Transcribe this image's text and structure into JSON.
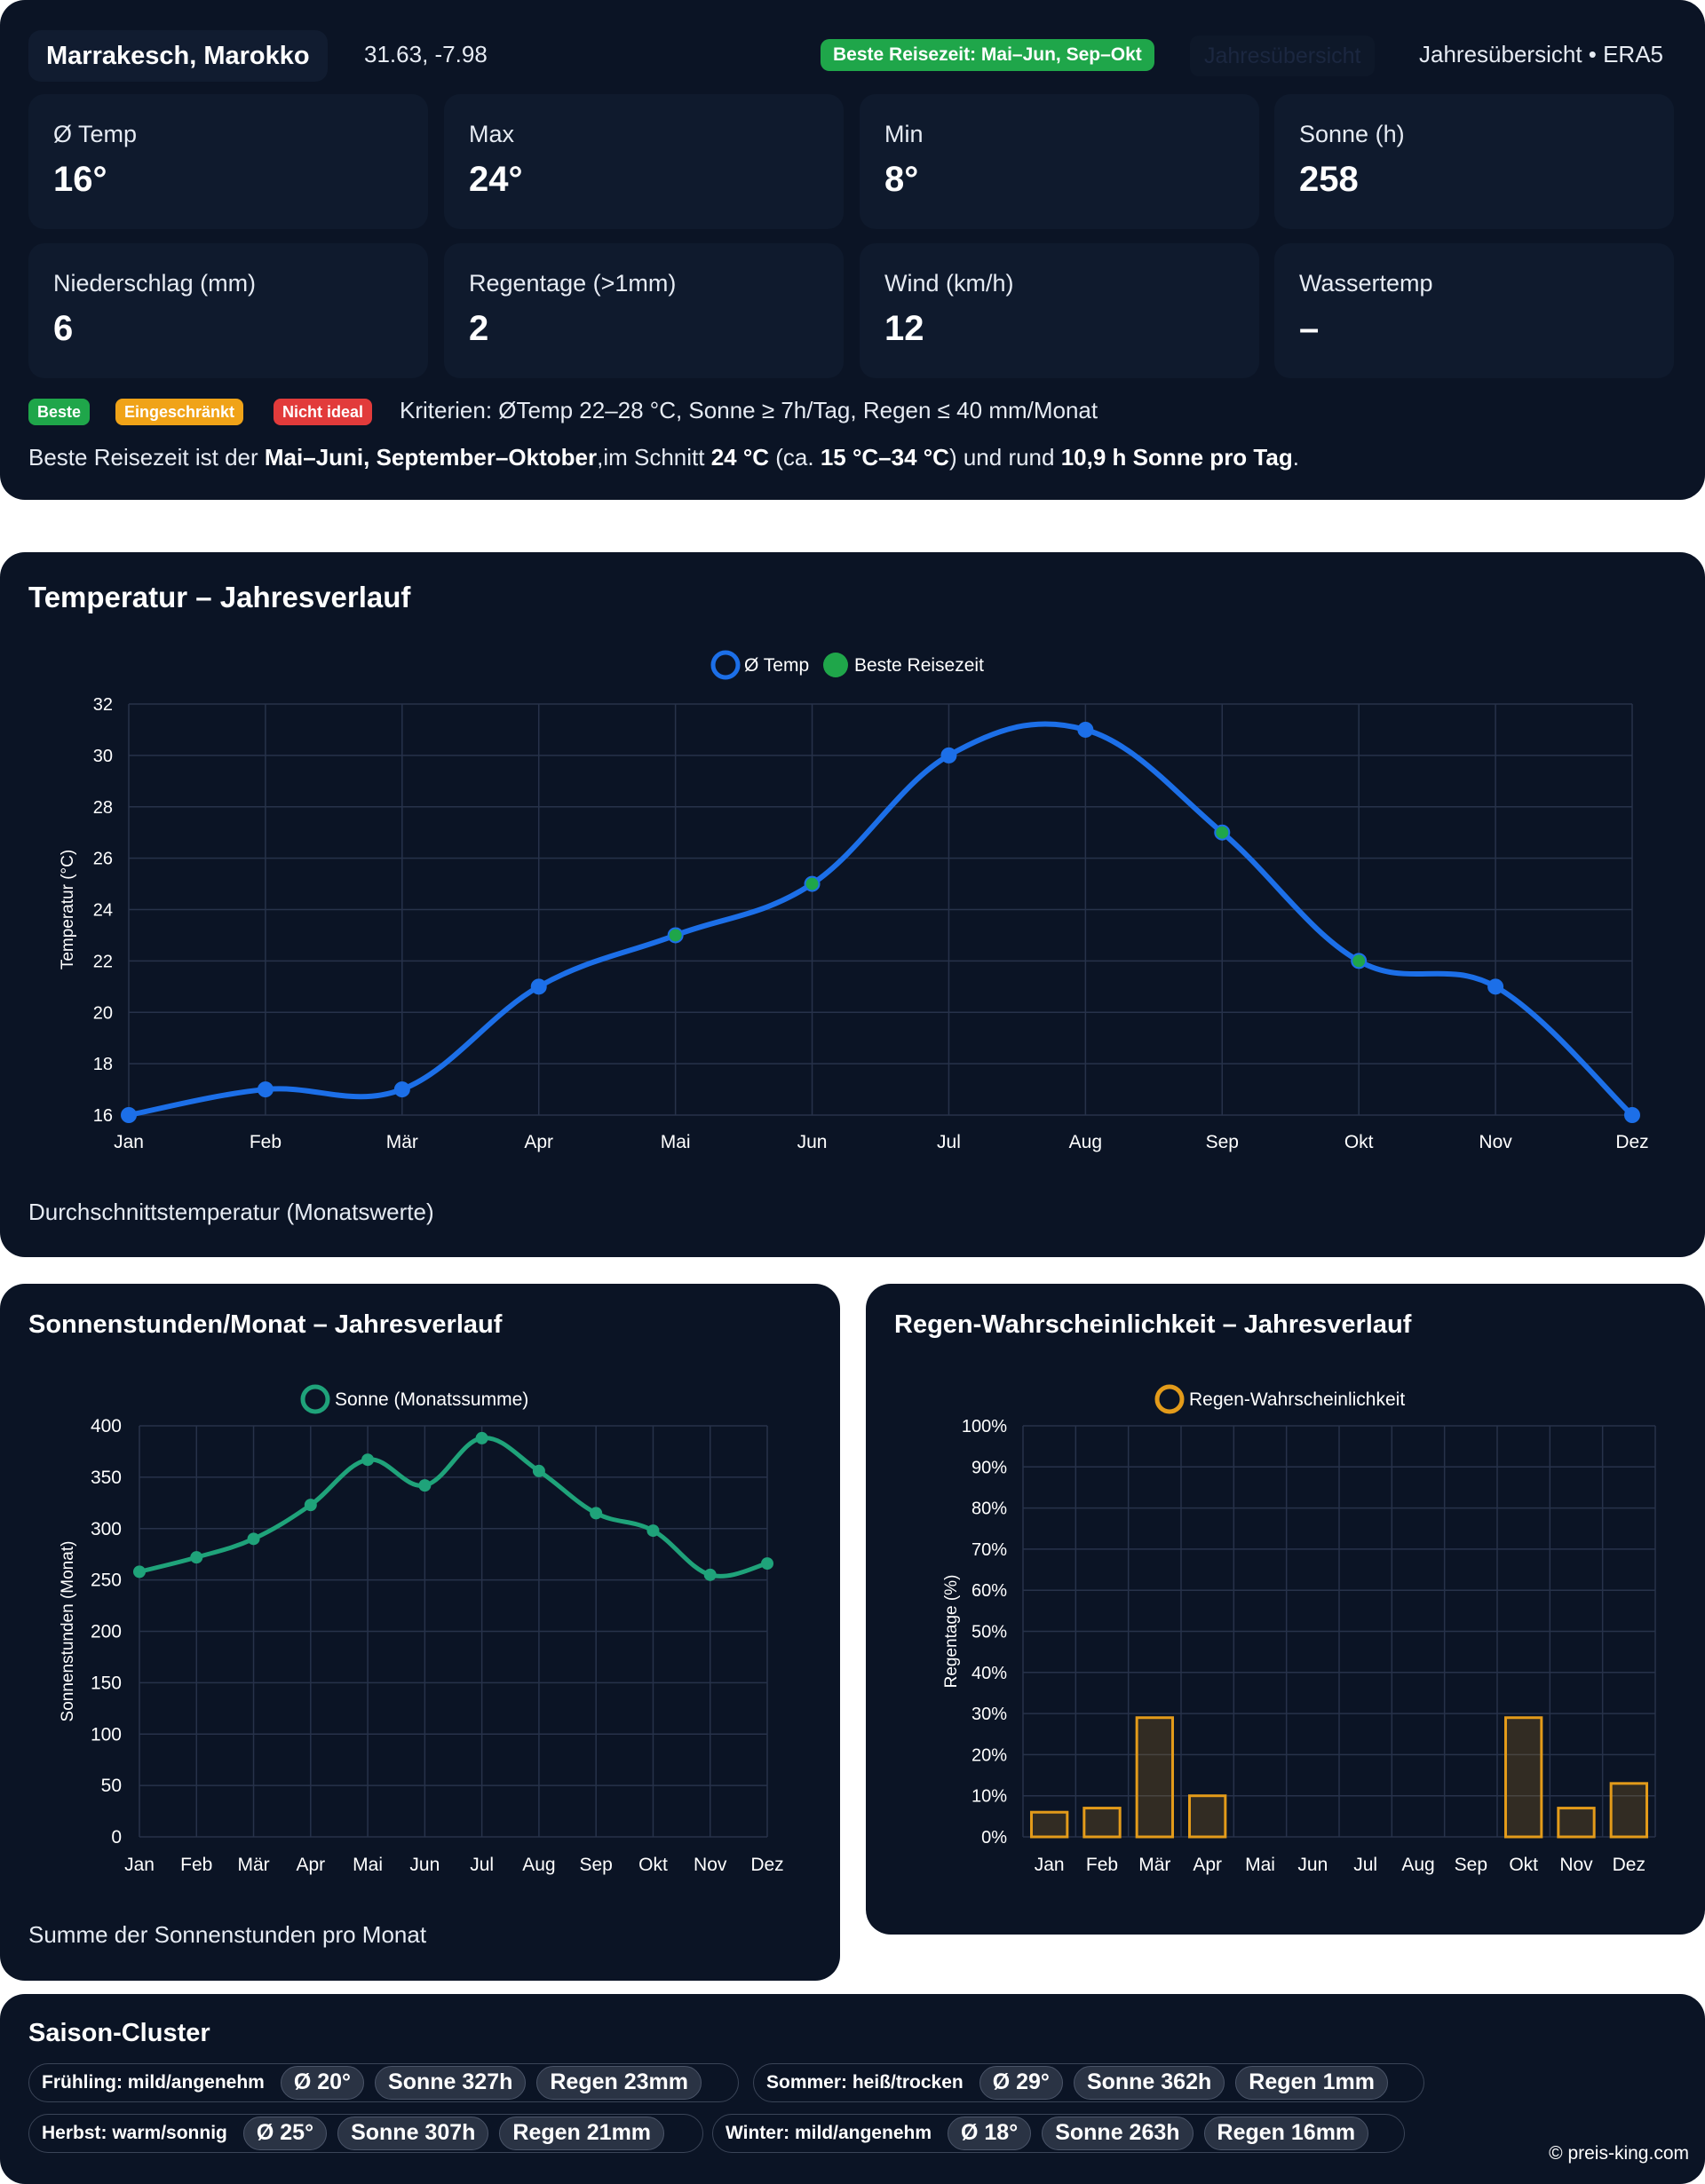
{
  "header": {
    "location": "Marrakesch, Marokko",
    "coords": "31.63, -7.98",
    "best_badge": "Beste Reisezeit: Mai–Jun, Sep–Okt",
    "ghost_tab": "Jahresübersicht",
    "period": "Jahresübersicht • ERA5"
  },
  "stats": [
    {
      "label": "Ø Temp",
      "value": "16°"
    },
    {
      "label": "Max",
      "value": "24°"
    },
    {
      "label": "Min",
      "value": "8°"
    },
    {
      "label": "Sonne (h)",
      "value": "258"
    },
    {
      "label": "Niederschlag (mm)",
      "value": "6"
    },
    {
      "label": "Regentage (>1mm)",
      "value": "2"
    },
    {
      "label": "Wind (km/h)",
      "value": "12"
    },
    {
      "label": "Wassertemp",
      "value": "–"
    }
  ],
  "legend": {
    "best": "Beste",
    "limited": "Eingeschränkt",
    "not_ideal": "Nicht ideal",
    "criteria": "Kriterien: ØTemp 22–28 °C, Sonne ≥ 7h/Tag, Regen ≤ 40 mm/Monat",
    "colors": {
      "best": "#1fa64a",
      "limited": "#f0a318",
      "not_ideal": "#e23b3b"
    }
  },
  "summary": {
    "prefix": "Beste Reisezeit ist der ",
    "months": "Mai–Juni, September–Oktober",
    "mid1": ",im Schnitt ",
    "avg": "24 °C",
    "mid2": " (ca. ",
    "range": "15 °C–34 °C",
    "mid3": ") und rund ",
    "sun": "10,9 h Sonne pro Tag",
    "suffix": "."
  },
  "temp_card": {
    "title": "Temperatur – Jahresverlauf",
    "caption": "Durchschnittstemperatur (Monatswerte)"
  },
  "sun_card": {
    "title": "Sonnenstunden/Monat – Jahresverlauf",
    "caption": "Summe der Sonnenstunden pro Monat"
  },
  "rain_card": {
    "title": "Regen-Wahrscheinlichkeit – Jahresverlauf"
  },
  "chart_data": [
    {
      "type": "line",
      "title": "Temperatur – Jahresverlauf",
      "categories": [
        "Jan",
        "Feb",
        "Mär",
        "Apr",
        "Mai",
        "Jun",
        "Jul",
        "Aug",
        "Sep",
        "Okt",
        "Nov",
        "Dez"
      ],
      "series": [
        {
          "name": "Ø Temp",
          "values": [
            16,
            17,
            17,
            21,
            23,
            25,
            30,
            31,
            27,
            22,
            21,
            16
          ]
        }
      ],
      "highlight": {
        "name": "Beste Reisezeit",
        "indices": [
          4,
          5,
          8,
          9
        ]
      },
      "xlabel": "",
      "ylabel": "Temperatur (°C)",
      "ylim": [
        16,
        32
      ],
      "yticks": [
        16,
        18,
        20,
        22,
        24,
        26,
        28,
        30,
        32
      ],
      "line_color": "#1c6fe8",
      "highlight_color": "#1fa64a"
    },
    {
      "type": "line",
      "title": "Sonnenstunden/Monat – Jahresverlauf",
      "categories": [
        "Jan",
        "Feb",
        "Mär",
        "Apr",
        "Mai",
        "Jun",
        "Jul",
        "Aug",
        "Sep",
        "Okt",
        "Nov",
        "Dez"
      ],
      "series": [
        {
          "name": "Sonne (Monatssumme)",
          "values": [
            258,
            272,
            290,
            323,
            367,
            342,
            388,
            356,
            315,
            298,
            255,
            266
          ]
        }
      ],
      "xlabel": "",
      "ylabel": "Sonnenstunden (Monat)",
      "ylim": [
        0,
        400
      ],
      "yticks": [
        0,
        50,
        100,
        150,
        200,
        250,
        300,
        350,
        400
      ],
      "line_color": "#1fa37a"
    },
    {
      "type": "bar",
      "title": "Regen-Wahrscheinlichkeit – Jahresverlauf",
      "categories": [
        "Jan",
        "Feb",
        "Mär",
        "Apr",
        "Mai",
        "Jun",
        "Jul",
        "Aug",
        "Sep",
        "Okt",
        "Nov",
        "Dez"
      ],
      "series": [
        {
          "name": "Regen-Wahrscheinlichkeit",
          "values": [
            6,
            7,
            29,
            10,
            0,
            0,
            0,
            0,
            0,
            29,
            7,
            13
          ]
        }
      ],
      "xlabel": "",
      "ylabel": "Regentage (%)",
      "ylim": [
        0,
        100
      ],
      "yticks": [
        "0%",
        "10%",
        "20%",
        "30%",
        "40%",
        "50%",
        "60%",
        "70%",
        "80%",
        "90%",
        "100%"
      ],
      "bar_color": "#e39b1a"
    }
  ],
  "seasons": {
    "title": "Saison-Cluster",
    "items": [
      {
        "label": "Frühling: mild/angenehm",
        "temp": "Ø 20°",
        "sun": "Sonne 327h",
        "rain": "Regen 23mm"
      },
      {
        "label": "Sommer: heiß/trocken",
        "temp": "Ø 29°",
        "sun": "Sonne 362h",
        "rain": "Regen 1mm"
      },
      {
        "label": "Herbst: warm/sonnig",
        "temp": "Ø 25°",
        "sun": "Sonne 307h",
        "rain": "Regen 21mm"
      },
      {
        "label": "Winter: mild/angenehm",
        "temp": "Ø 18°",
        "sun": "Sonne 263h",
        "rain": "Regen 16mm"
      }
    ]
  },
  "footer": {
    "copyright": "© preis-king.com"
  }
}
